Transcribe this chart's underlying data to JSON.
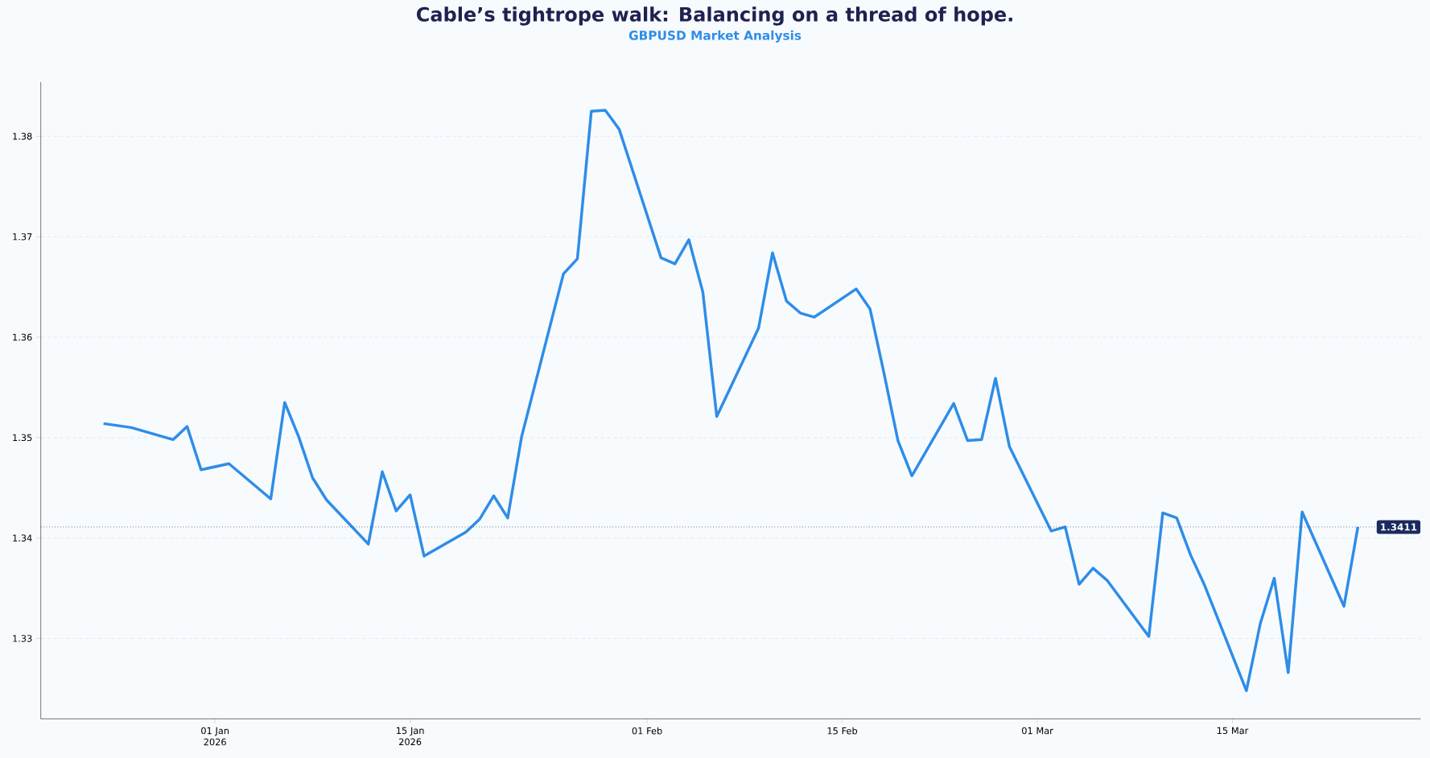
{
  "chart_data": {
    "type": "line",
    "title": "Cable’s tightrope walk: Balancing on a thread of hope.",
    "subtitle": "GBPUSD Market Analysis",
    "x": [
      "2025-12-24",
      "2025-12-26",
      "2025-12-29",
      "2025-12-30",
      "2025-12-31",
      "2026-01-02",
      "2026-01-05",
      "2026-01-06",
      "2026-01-07",
      "2026-01-08",
      "2026-01-09",
      "2026-01-12",
      "2026-01-13",
      "2026-01-14",
      "2026-01-15",
      "2026-01-16",
      "2026-01-19",
      "2026-01-20",
      "2026-01-21",
      "2026-01-22",
      "2026-01-23",
      "2026-01-26",
      "2026-01-27",
      "2026-01-28",
      "2026-01-29",
      "2026-01-30",
      "2026-02-02",
      "2026-02-03",
      "2026-02-04",
      "2026-02-05",
      "2026-02-06",
      "2026-02-09",
      "2026-02-10",
      "2026-02-11",
      "2026-02-12",
      "2026-02-13",
      "2026-02-16",
      "2026-02-17",
      "2026-02-18",
      "2026-02-19",
      "2026-02-20",
      "2026-02-23",
      "2026-02-24",
      "2026-02-25",
      "2026-02-26",
      "2026-02-27",
      "2026-03-02",
      "2026-03-03",
      "2026-03-04",
      "2026-03-05",
      "2026-03-06",
      "2026-03-09",
      "2026-03-10",
      "2026-03-11",
      "2026-03-12",
      "2026-03-13",
      "2026-03-16",
      "2026-03-17",
      "2026-03-18",
      "2026-03-19",
      "2026-03-20",
      "2026-03-23",
      "2026-03-24"
    ],
    "series": [
      {
        "color": "#2e8de8",
        "values": [
          1.3514,
          1.351,
          1.3498,
          1.3511,
          1.3468,
          1.3474,
          1.3439,
          1.3535,
          1.3501,
          1.346,
          1.3438,
          1.3394,
          1.3466,
          1.3427,
          1.3443,
          1.3382,
          1.3406,
          1.3419,
          1.3442,
          1.342,
          1.3501,
          1.3663,
          1.3678,
          1.3825,
          1.3826,
          1.3807,
          1.3679,
          1.3673,
          1.3697,
          1.3645,
          1.3521,
          1.3609,
          1.3684,
          1.3636,
          1.3624,
          1.362,
          1.3648,
          1.3628,
          1.3564,
          1.3497,
          1.3462,
          1.3534,
          1.3497,
          1.3498,
          1.3559,
          1.3491,
          1.3407,
          1.3411,
          1.3354,
          1.337,
          1.3358,
          1.3302,
          1.3425,
          1.342,
          1.3383,
          1.3353,
          1.3248,
          1.3315,
          1.336,
          1.3266,
          1.3426,
          1.3332,
          1.3411
        ]
      }
    ],
    "xlim": [
      "2025-12-19T12:00",
      "2026-03-28T12:00"
    ],
    "xticks": [
      {
        "value": "2026-01-01",
        "label": "01 Jan 2026"
      },
      {
        "value": "2026-01-15",
        "label": "15 Jan 2026"
      },
      {
        "value": "2026-02-01",
        "label": "01 Feb"
      },
      {
        "value": "2026-02-15",
        "label": "15 Feb"
      },
      {
        "value": "2026-03-01",
        "label": "01 Mar"
      },
      {
        "value": "2026-03-15",
        "label": "15 Mar"
      }
    ],
    "ylim": [
      1.322,
      1.3854
    ],
    "yticks": [
      1.33,
      1.34,
      1.35,
      1.36,
      1.37,
      1.38
    ],
    "grid": "y",
    "marker": "none",
    "line_style": "solid",
    "ref_lines": [
      {
        "axis": "y",
        "value": 1.3411,
        "label": "1.3411",
        "color": "#1a2a5e",
        "line_style": "dotted"
      }
    ]
  }
}
